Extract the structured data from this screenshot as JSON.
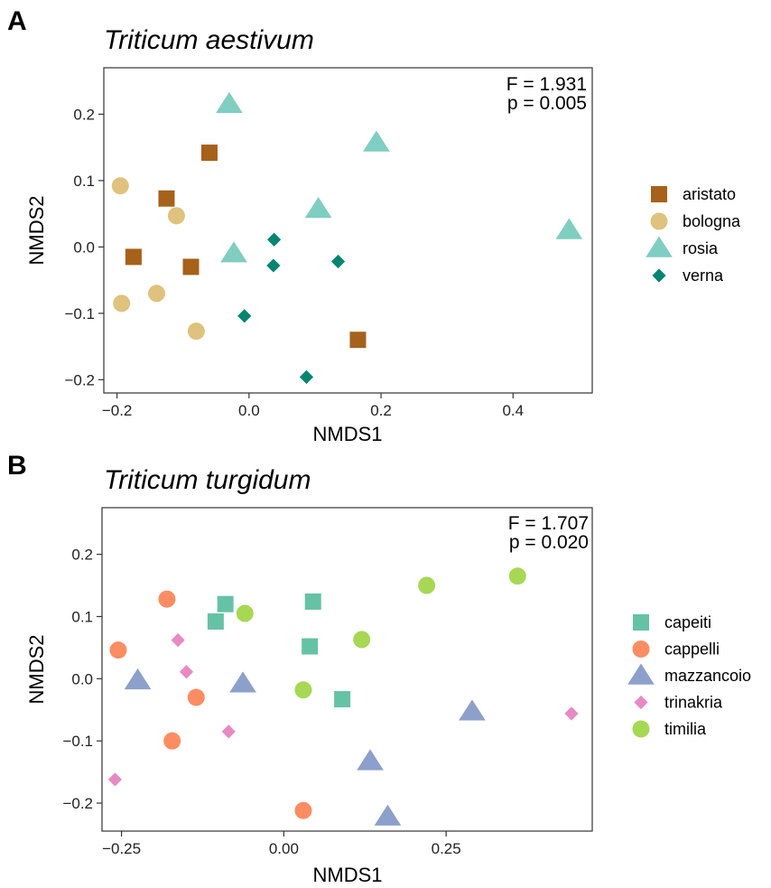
{
  "chart_data": [
    {
      "type": "scatter",
      "panel": "A",
      "title": "Triticum aestivum",
      "xlabel": "NMDS1",
      "ylabel": "NMDS2",
      "xlim": [
        -0.22,
        0.52
      ],
      "ylim": [
        -0.22,
        0.27
      ],
      "xticks": [
        -0.2,
        0.0,
        0.2,
        0.4
      ],
      "xtick_labels": [
        "−0.2",
        "0.0",
        "0.2",
        "0.4"
      ],
      "yticks": [
        -0.2,
        -0.1,
        0.0,
        0.1,
        0.2
      ],
      "ytick_labels": [
        "−0.2",
        "−0.1",
        "0.0",
        "0.1",
        "0.2"
      ],
      "stats": {
        "F": "F = 1.931",
        "p": "p = 0.005"
      },
      "legend_position": "right",
      "series": [
        {
          "name": "aristato",
          "shape": "square",
          "color": "#A6611A",
          "points": [
            [
              -0.06,
              0.142
            ],
            [
              -0.125,
              0.073
            ],
            [
              -0.175,
              -0.015
            ],
            [
              -0.088,
              -0.03
            ],
            [
              0.165,
              -0.14
            ]
          ]
        },
        {
          "name": "bologna",
          "shape": "circle",
          "color": "#DFC27D",
          "points": [
            [
              -0.195,
              0.092
            ],
            [
              -0.11,
              0.047
            ],
            [
              -0.14,
              -0.07
            ],
            [
              -0.193,
              -0.085
            ],
            [
              -0.08,
              -0.127
            ]
          ]
        },
        {
          "name": "rosia",
          "shape": "triangle",
          "color": "#80CDC1",
          "points": [
            [
              -0.03,
              0.215
            ],
            [
              0.193,
              0.157
            ],
            [
              0.105,
              0.057
            ],
            [
              -0.023,
              -0.01
            ],
            [
              0.485,
              0.025
            ]
          ]
        },
        {
          "name": "verna",
          "shape": "diamond",
          "color": "#018571",
          "points": [
            [
              0.038,
              0.011
            ],
            [
              0.037,
              -0.028
            ],
            [
              0.135,
              -0.022
            ],
            [
              -0.007,
              -0.104
            ],
            [
              0.087,
              -0.196
            ]
          ]
        }
      ]
    },
    {
      "type": "scatter",
      "panel": "B",
      "title": "Triticum turgidum",
      "xlabel": "NMDS1",
      "ylabel": "NMDS2",
      "xlim": [
        -0.28,
        0.475
      ],
      "ylim": [
        -0.245,
        0.275
      ],
      "xticks": [
        -0.25,
        0.0,
        0.25
      ],
      "xtick_labels": [
        "−0.25",
        "0.00",
        "0.25"
      ],
      "yticks": [
        -0.2,
        -0.1,
        0.0,
        0.1,
        0.2
      ],
      "ytick_labels": [
        "−0.2",
        "−0.1",
        "0.0",
        "0.1",
        "0.2"
      ],
      "stats": {
        "F": "F = 1.707",
        "p": "p = 0.020"
      },
      "legend_position": "right",
      "series": [
        {
          "name": "capeiti",
          "shape": "square",
          "color": "#66C2A5",
          "points": [
            [
              -0.09,
              0.12
            ],
            [
              -0.105,
              0.092
            ],
            [
              0.045,
              0.124
            ],
            [
              0.04,
              0.052
            ],
            [
              0.09,
              -0.033
            ]
          ]
        },
        {
          "name": "cappelli",
          "shape": "circle",
          "color": "#FC8D62",
          "points": [
            [
              -0.18,
              0.128
            ],
            [
              -0.255,
              0.046
            ],
            [
              -0.135,
              -0.03
            ],
            [
              -0.172,
              -0.1
            ],
            [
              0.03,
              -0.212
            ]
          ]
        },
        {
          "name": "mazzancoio",
          "shape": "triangle",
          "color": "#8DA0CB",
          "points": [
            [
              -0.225,
              -0.003
            ],
            [
              -0.063,
              -0.008
            ],
            [
              0.133,
              -0.133
            ],
            [
              0.16,
              -0.222
            ],
            [
              0.29,
              -0.053
            ]
          ]
        },
        {
          "name": "trinakria",
          "shape": "diamond",
          "color": "#E78AC3",
          "points": [
            [
              -0.163,
              0.062
            ],
            [
              -0.15,
              0.011
            ],
            [
              -0.085,
              -0.085
            ],
            [
              -0.26,
              -0.162
            ],
            [
              0.443,
              -0.056
            ]
          ]
        },
        {
          "name": "timilia",
          "shape": "circle",
          "color": "#A6D854",
          "points": [
            [
              -0.06,
              0.105
            ],
            [
              0.12,
              0.063
            ],
            [
              0.03,
              -0.018
            ],
            [
              0.22,
              0.15
            ],
            [
              0.36,
              0.165
            ]
          ]
        }
      ]
    }
  ]
}
